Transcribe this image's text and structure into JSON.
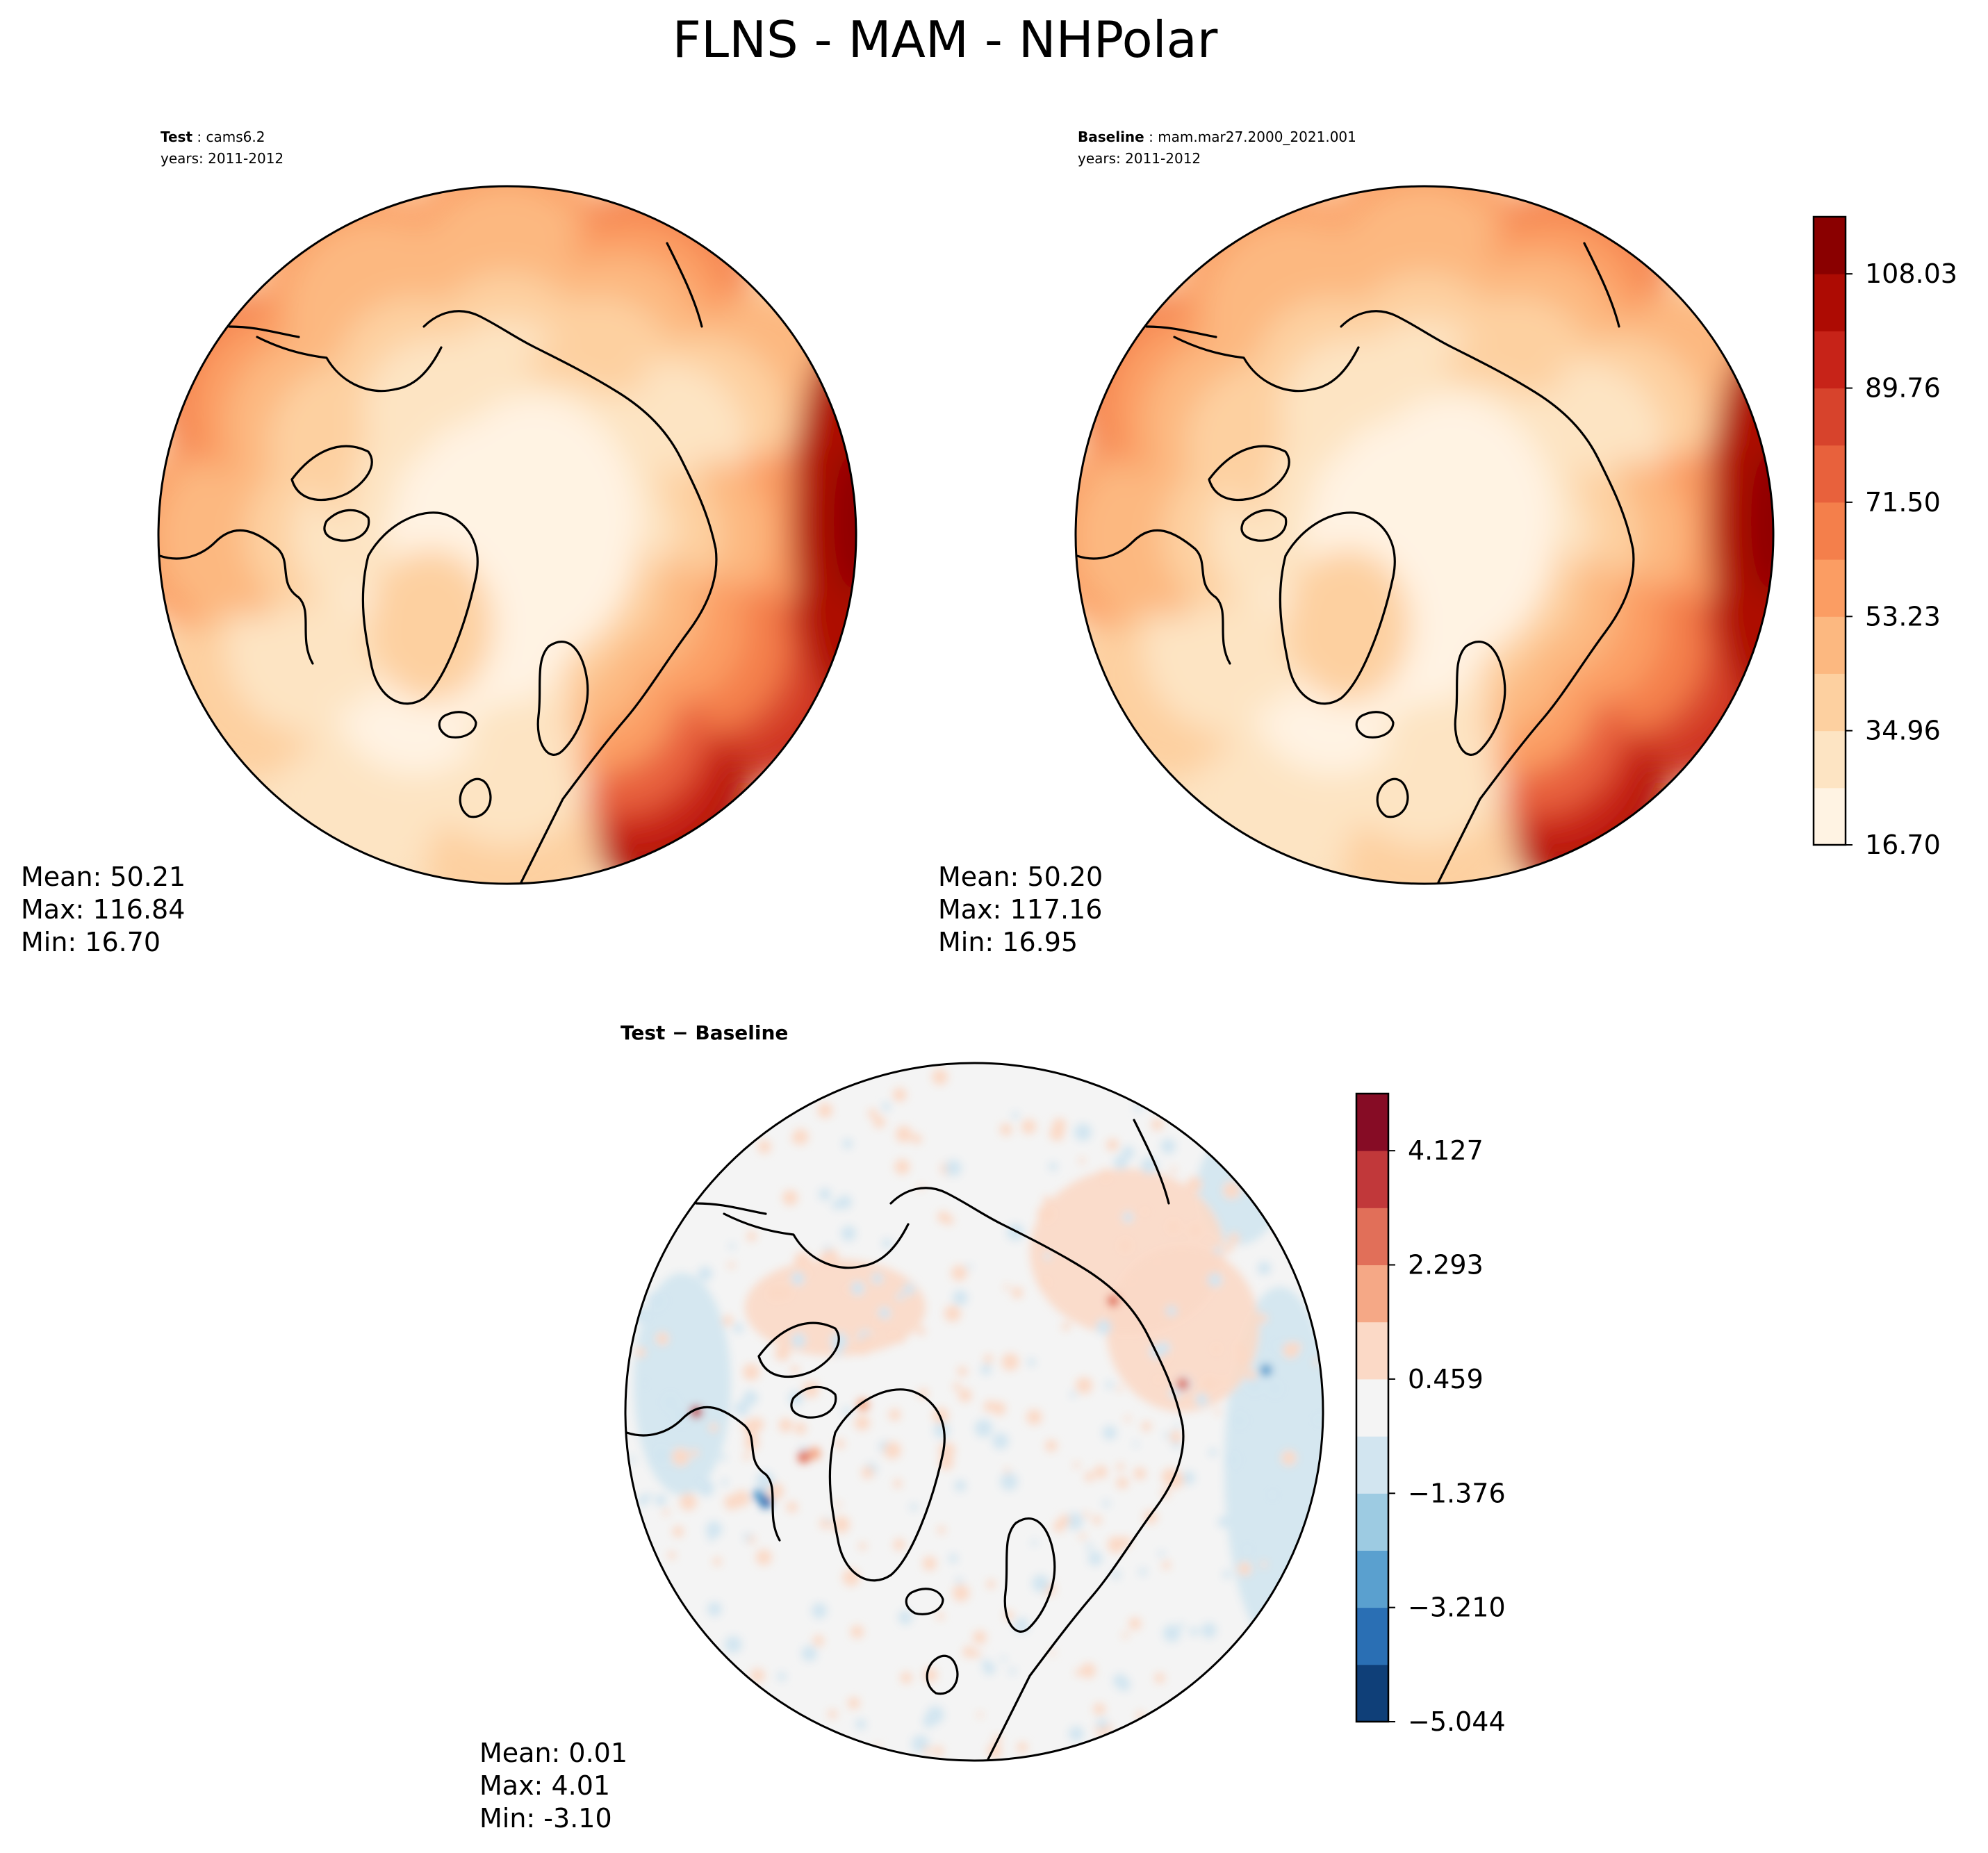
{
  "figure": {
    "title": "FLNS - MAM - NHPolar"
  },
  "panels": {
    "test": {
      "label": "Test",
      "name": ": cams6.2",
      "years": "years: 2011-2012",
      "stats": {
        "mean": "Mean: 50.21",
        "max": "Max: 116.84",
        "min": "Min: 16.70"
      }
    },
    "baseline": {
      "label": "Baseline",
      "name": ": mam.mar27.2000_2021.001",
      "years": "years: 2011-2012",
      "stats": {
        "mean": "Mean: 50.20",
        "max": "Max: 117.16",
        "min": "Min: 16.95"
      }
    },
    "diff": {
      "label": "Test − Baseline",
      "stats": {
        "mean": "Mean:  0.01",
        "max": "Max:  4.01",
        "min": "Min: -3.10"
      }
    }
  },
  "chart_data": [
    {
      "type": "heatmap",
      "projection": "north-polar-stereographic",
      "title": "Test : cams6.2",
      "subtitle": "years: 2011-2012",
      "colormap": "OrRd",
      "levels": [
        16.7,
        25.83,
        34.96,
        44.1,
        53.23,
        62.36,
        71.5,
        80.63,
        89.76,
        98.9,
        108.03,
        117.16
      ],
      "colorbar_ticks": [
        "16.70",
        "34.96",
        "53.23",
        "71.50",
        "89.76",
        "108.03"
      ],
      "colors": [
        "#fff3e3",
        "#fde4c3",
        "#fdd0a0",
        "#fcb880",
        "#fb9d63",
        "#f47f4b",
        "#e8613c",
        "#d7432c",
        "#c72318",
        "#ad0b03",
        "#8a0000"
      ],
      "stats": {
        "mean": 50.21,
        "max": 116.84,
        "min": 16.7
      },
      "centroid_level_index": 0,
      "edge_level_by_longitude": [
        {
          "lon": 0,
          "level_index": 4
        },
        {
          "lon": 30,
          "level_index": 5
        },
        {
          "lon": 60,
          "level_index": 3
        },
        {
          "lon": 90,
          "level_index": 6
        },
        {
          "lon": 120,
          "level_index": 8
        },
        {
          "lon": 150,
          "level_index": 9
        },
        {
          "lon": 180,
          "level_index": 2
        },
        {
          "lon": 210,
          "level_index": 1
        },
        {
          "lon": 240,
          "level_index": 2
        },
        {
          "lon": 270,
          "level_index": 4
        },
        {
          "lon": 300,
          "level_index": 5
        },
        {
          "lon": 330,
          "level_index": 4
        }
      ]
    },
    {
      "type": "heatmap",
      "projection": "north-polar-stereographic",
      "title": "Baseline : mam.mar27.2000_2021.001",
      "subtitle": "years: 2011-2012",
      "colormap": "OrRd",
      "levels": [
        16.7,
        25.83,
        34.96,
        44.1,
        53.23,
        62.36,
        71.5,
        80.63,
        89.76,
        98.9,
        108.03,
        117.16
      ],
      "stats": {
        "mean": 50.2,
        "max": 117.16,
        "min": 16.95
      }
    },
    {
      "type": "heatmap",
      "projection": "north-polar-stereographic",
      "title": "Test − Baseline",
      "colormap": "RdBu_r",
      "levels": [
        -5.044,
        -4.127,
        -3.21,
        -2.293,
        -1.376,
        -0.459,
        0.459,
        1.376,
        2.293,
        3.21,
        4.127,
        5.044
      ],
      "colorbar_ticks": [
        "−5.044",
        "−3.210",
        "−1.376",
        "0.459",
        "2.293",
        "4.127"
      ],
      "colors": [
        "#0f3f78",
        "#2a6fb4",
        "#5aa0cf",
        "#9dcbe2",
        "#d2e5f0",
        "#f4f4f4",
        "#fbd9c6",
        "#f5a886",
        "#e16f59",
        "#c1383a",
        "#860c25"
      ],
      "stats": {
        "mean": 0.01,
        "max": 4.01,
        "min": -3.1
      }
    }
  ]
}
